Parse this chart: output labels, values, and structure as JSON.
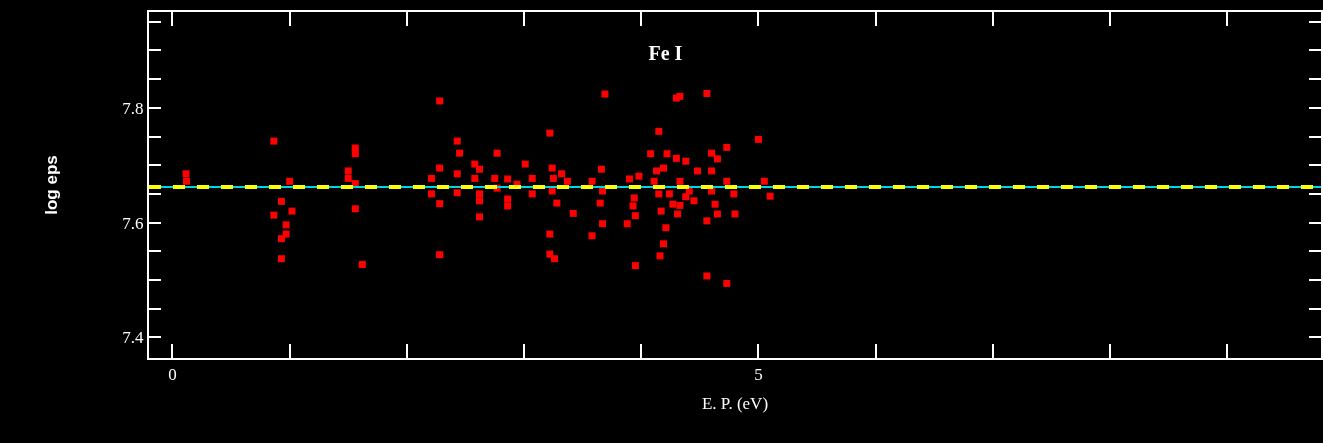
{
  "chart_data": {
    "type": "scatter",
    "title": "Fe I",
    "xlabel": "E. P. (eV)",
    "ylabel": "log eps",
    "xlim": [
      -0.2,
      9.8
    ],
    "xticks": [
      0,
      {
        "value": 1,
        "label": null
      },
      {
        "value": 2,
        "label": null
      },
      {
        "value": 3,
        "label": null
      },
      {
        "value": 4,
        "label": null
      },
      5,
      {
        "value": 6,
        "label": null
      },
      {
        "value": 7,
        "label": null
      },
      {
        "value": 8,
        "label": null
      },
      {
        "value": 9,
        "label": null
      }
    ],
    "ylim": [
      7.364,
      7.967
    ],
    "yticks": [
      7.4,
      {
        "value": 7.45,
        "label": null
      },
      {
        "value": 7.5,
        "label": null
      },
      {
        "value": 7.55,
        "label": null
      },
      7.6,
      {
        "value": 7.65,
        "label": null
      },
      {
        "value": 7.7,
        "label": null
      },
      {
        "value": 7.75,
        "label": null
      },
      7.8,
      {
        "value": 7.85,
        "label": null
      },
      {
        "value": 7.9,
        "label": null
      },
      {
        "value": 7.95,
        "label": null
      }
    ],
    "marker": "square",
    "series": [
      {
        "color": "#ff0000",
        "x": [
          0.116,
          0.12,
          0.865,
          0.93,
          0.865,
          1.02,
          0.97,
          0.97,
          0.93,
          0.93,
          1.0,
          1.56,
          1.56,
          1.5,
          1.5,
          1.56,
          1.56,
          1.62,
          2.28,
          2.28,
          2.28,
          2.21,
          2.21,
          2.28,
          2.43,
          2.45,
          2.43,
          2.43,
          2.58,
          2.62,
          2.58,
          2.62,
          2.62,
          2.62,
          2.77,
          2.75,
          2.77,
          2.86,
          2.86,
          2.86,
          2.94,
          3.01,
          3.07,
          3.07,
          3.22,
          3.24,
          3.25,
          3.24,
          3.28,
          3.32,
          3.37,
          3.42,
          3.22,
          3.22,
          3.26,
          3.69,
          4.3,
          4.33,
          4.56,
          4.15,
          5.0,
          4.73,
          3.66,
          3.58,
          3.67,
          3.65,
          3.67,
          3.58,
          3.9,
          3.98,
          3.94,
          3.93,
          3.95,
          3.88,
          4.08,
          4.11,
          4.15,
          4.17,
          4.22,
          4.19,
          4.3,
          4.38,
          4.21,
          4.31,
          4.41,
          4.45,
          4.48,
          4.33,
          4.6,
          4.65,
          4.6,
          4.6,
          4.63,
          4.56,
          4.65,
          4.73,
          4.79,
          4.8,
          5.05,
          5.1,
          4.19,
          4.16,
          3.95,
          4.56,
          4.73,
          4.24,
          4.27,
          4.33,
          4.38,
          4.13
        ],
        "values": [
          7.685,
          7.672,
          7.742,
          7.637,
          7.613,
          7.62,
          7.596,
          7.58,
          7.572,
          7.537,
          7.672,
          7.73,
          7.72,
          7.69,
          7.677,
          7.668,
          7.624,
          7.527,
          7.812,
          7.544,
          7.695,
          7.677,
          7.65,
          7.633,
          7.742,
          7.721,
          7.685,
          7.652,
          7.702,
          7.693,
          7.677,
          7.65,
          7.638,
          7.61,
          7.721,
          7.677,
          7.66,
          7.676,
          7.641,
          7.629,
          7.667,
          7.702,
          7.677,
          7.65,
          7.756,
          7.695,
          7.677,
          7.655,
          7.634,
          7.685,
          7.672,
          7.616,
          7.58,
          7.545,
          7.537,
          7.824,
          7.817,
          7.82,
          7.825,
          7.759,
          7.745,
          7.731,
          7.693,
          7.672,
          7.655,
          7.634,
          7.598,
          7.577,
          7.676,
          7.681,
          7.643,
          7.629,
          7.612,
          7.598,
          7.72,
          7.672,
          7.65,
          7.62,
          7.72,
          7.695,
          7.712,
          7.707,
          7.591,
          7.615,
          7.655,
          7.638,
          7.69,
          7.672,
          7.721,
          7.711,
          7.69,
          7.655,
          7.632,
          7.603,
          7.615,
          7.672,
          7.65,
          7.615,
          7.672,
          7.646,
          7.563,
          7.542,
          7.525,
          7.507,
          7.494,
          7.65,
          7.632,
          7.63,
          7.645,
          7.69
        ]
      }
    ],
    "ref_lines": [
      {
        "axis": "y",
        "value": 7.662,
        "color": "#00d8e0",
        "line_style": "solid"
      },
      {
        "axis": "y",
        "value": 7.662,
        "color": "#ffff00",
        "line_style": "dashed"
      }
    ]
  }
}
